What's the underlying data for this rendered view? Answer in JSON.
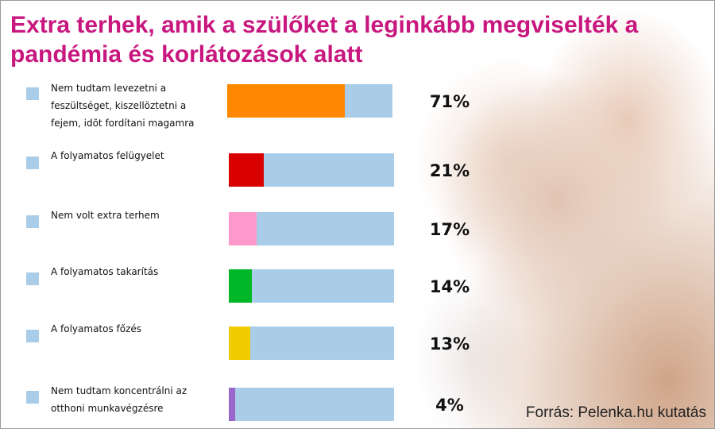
{
  "chart_data": {
    "type": "bar",
    "orientation": "horizontal",
    "title": "Extra terhek, amik a szülőket a leginkább megviselték a pandémia és korlátozások alatt",
    "categories": [
      "Nem tudtam levezetni a feszültséget, kiszellöztetni a fejem, idõt fordítani magamra",
      "A folyamatos felügyelet",
      "Nem volt extra terhem",
      "A folyamatos takarítás",
      "A folyamatos főzés",
      "Nem tudtam koncentrálni az otthoni munkavégzésre"
    ],
    "values": [
      71,
      21,
      17,
      14,
      13,
      4
    ],
    "value_labels": [
      "71%",
      "21%",
      "17%",
      "14%",
      "13%",
      "4%"
    ],
    "xlim": [
      0,
      100
    ],
    "unit": "%",
    "colors": [
      "#ff8800",
      "#d80000",
      "#ff99cc",
      "#00b827",
      "#f0cc00",
      "#9966cc"
    ],
    "track_color": "#a9cce8",
    "legend_swatch_color": "#a9cce8",
    "title_color": "#c8177f",
    "grid": false
  },
  "source": "Forrás: Pelenka.hu kutatás"
}
